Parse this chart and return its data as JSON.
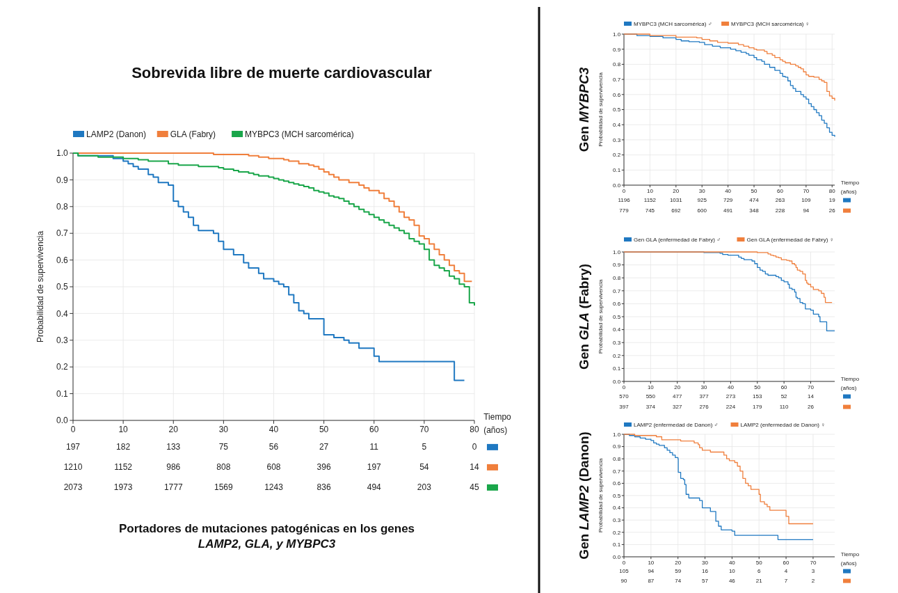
{
  "chart_data": [
    {
      "type": "step",
      "title": "Sobrevida libre de muerte cardiovascular",
      "xlabel": "Tiempo (años)",
      "ylabel": "Probabilidad de supervivencia",
      "legend": "top left",
      "grid": true,
      "xlim": [
        0,
        80
      ],
      "xticks": [
        0,
        10,
        20,
        30,
        40,
        50,
        60,
        70,
        80
      ],
      "ylim": [
        0,
        1
      ],
      "yticks": [
        {
          "value": 0,
          "label": "0.0"
        },
        {
          "value": 0.1,
          "label": "0.1"
        },
        {
          "value": 0.2,
          "label": "0.2"
        },
        {
          "value": 0.3,
          "label": "0.3"
        },
        {
          "value": 0.4,
          "label": "0.4"
        },
        {
          "value": 0.5,
          "label": "0.5"
        },
        {
          "value": 0.6,
          "label": "0.6"
        },
        {
          "value": 0.7,
          "label": "0.7"
        },
        {
          "value": 0.8,
          "label": "0.8"
        },
        {
          "value": 0.9,
          "label": "0.9"
        },
        {
          "value": 1,
          "label": "1.0"
        }
      ],
      "series": [
        {
          "name": "LAMP2 (Danon)",
          "color": "#1f78c1",
          "x": [
            0,
            1,
            8,
            10,
            11,
            12,
            13,
            15,
            16,
            17,
            19,
            20,
            21,
            22,
            23,
            24,
            25,
            28,
            29,
            30,
            32,
            34,
            35,
            37,
            38,
            40,
            41,
            42,
            43,
            44,
            45,
            46,
            47,
            50,
            52,
            54,
            55,
            57,
            60,
            61,
            76,
            78
          ],
          "values": [
            1,
            0.99,
            0.98,
            0.97,
            0.96,
            0.95,
            0.94,
            0.92,
            0.91,
            0.89,
            0.88,
            0.82,
            0.8,
            0.78,
            0.76,
            0.73,
            0.71,
            0.7,
            0.67,
            0.64,
            0.62,
            0.59,
            0.57,
            0.55,
            0.53,
            0.52,
            0.51,
            0.5,
            0.47,
            0.44,
            0.41,
            0.4,
            0.38,
            0.32,
            0.31,
            0.3,
            0.29,
            0.27,
            0.24,
            0.22,
            0.15,
            0.15
          ]
        },
        {
          "name": "GLA (Fabry)",
          "color": "#f07f3c",
          "x": [
            0,
            28,
            35,
            37,
            39,
            42,
            43,
            45,
            47,
            48,
            49,
            50,
            51,
            52,
            53,
            55,
            57,
            58,
            59,
            61,
            62,
            63,
            64,
            65,
            66,
            67,
            68,
            69,
            70,
            71,
            72,
            73,
            74,
            75,
            76,
            77,
            78,
            79.5
          ],
          "values": [
            1,
            0.995,
            0.99,
            0.985,
            0.98,
            0.975,
            0.97,
            0.96,
            0.955,
            0.95,
            0.94,
            0.93,
            0.92,
            0.91,
            0.9,
            0.89,
            0.88,
            0.87,
            0.86,
            0.85,
            0.83,
            0.82,
            0.8,
            0.78,
            0.76,
            0.75,
            0.73,
            0.69,
            0.68,
            0.66,
            0.64,
            0.62,
            0.6,
            0.58,
            0.56,
            0.55,
            0.52,
            0.52
          ]
        },
        {
          "name": "MYBPC3 (MCH sarcomérica)",
          "color": "#1aa64a",
          "x": [
            0,
            1,
            5,
            10,
            13,
            15,
            19,
            21,
            25,
            29,
            30,
            32,
            33,
            35,
            36,
            37,
            39,
            40,
            41,
            42,
            43,
            44,
            45,
            46,
            47,
            48,
            49,
            50,
            51,
            52,
            53,
            54,
            55,
            56,
            57,
            58,
            59,
            60,
            61,
            62,
            63,
            64,
            65,
            66,
            67,
            68,
            69,
            70,
            71,
            72,
            73,
            74,
            75,
            76,
            77,
            78,
            79,
            80
          ],
          "values": [
            1,
            0.99,
            0.985,
            0.98,
            0.975,
            0.97,
            0.96,
            0.955,
            0.95,
            0.945,
            0.94,
            0.935,
            0.93,
            0.925,
            0.92,
            0.915,
            0.91,
            0.905,
            0.9,
            0.895,
            0.89,
            0.885,
            0.88,
            0.875,
            0.87,
            0.86,
            0.855,
            0.85,
            0.84,
            0.835,
            0.83,
            0.82,
            0.81,
            0.8,
            0.79,
            0.78,
            0.77,
            0.76,
            0.75,
            0.74,
            0.73,
            0.72,
            0.71,
            0.7,
            0.68,
            0.67,
            0.66,
            0.64,
            0.6,
            0.58,
            0.57,
            0.56,
            0.54,
            0.53,
            0.51,
            0.5,
            0.44,
            0.43
          ]
        }
      ],
      "annotations": [
        "197",
        "182",
        "133",
        "75",
        "56",
        "27",
        "11",
        "5",
        "0",
        "1210",
        "1152",
        "986",
        "808",
        "608",
        "396",
        "197",
        "54",
        "14",
        "2073",
        "1973",
        "1777",
        "1569",
        "1243",
        "836",
        "494",
        "203",
        "45",
        "Portadores de mutaciones patogénicas en los genes",
        "LAMP2, GLA, y MYBPC3"
      ]
    },
    {
      "type": "step",
      "title": "Gen MYBPC3",
      "xlabel": "Tiempo (años)",
      "ylabel": "Probabilidad de supervivencia",
      "legend": "top left",
      "grid": true,
      "xlim": [
        0,
        81
      ],
      "xticks": [
        0,
        10,
        20,
        30,
        40,
        50,
        60,
        70,
        80
      ],
      "ylim": [
        0,
        1
      ],
      "yticks": [
        {
          "value": 0,
          "label": "0.0"
        },
        {
          "value": 0.1,
          "label": "0.1"
        },
        {
          "value": 0.2,
          "label": "0.2"
        },
        {
          "value": 0.3,
          "label": "0.3"
        },
        {
          "value": 0.4,
          "label": "0.4"
        },
        {
          "value": 0.5,
          "label": "0.5"
        },
        {
          "value": 0.6,
          "label": "0.6"
        },
        {
          "value": 0.7,
          "label": "0.7"
        },
        {
          "value": 0.8,
          "label": "0.8"
        },
        {
          "value": 0.9,
          "label": "0.9"
        },
        {
          "value": 1,
          "label": "1.0"
        }
      ],
      "series": [
        {
          "name": "MYBPC3 (MCH sarcomérica) ♂",
          "color": "#1f78c1",
          "x": [
            0,
            5,
            10,
            15,
            20,
            22,
            25,
            29,
            31,
            34,
            37,
            41,
            43,
            45,
            47,
            48,
            50,
            51,
            53,
            54,
            56,
            58,
            60,
            61,
            62,
            63,
            64,
            65,
            66,
            68,
            69,
            70,
            71,
            72,
            73,
            74,
            75,
            76,
            77,
            78,
            79,
            80,
            81
          ],
          "values": [
            1,
            0.99,
            0.985,
            0.975,
            0.965,
            0.955,
            0.95,
            0.945,
            0.93,
            0.92,
            0.91,
            0.9,
            0.89,
            0.88,
            0.87,
            0.86,
            0.845,
            0.83,
            0.82,
            0.8,
            0.78,
            0.76,
            0.74,
            0.72,
            0.715,
            0.69,
            0.66,
            0.64,
            0.62,
            0.6,
            0.585,
            0.57,
            0.54,
            0.52,
            0.5,
            0.48,
            0.46,
            0.43,
            0.41,
            0.38,
            0.35,
            0.33,
            0.32
          ]
        },
        {
          "name": "MYBPC3 (MCH sarcomérica) ♀",
          "color": "#f07f3c",
          "x": [
            0,
            10,
            20,
            28,
            30,
            33,
            36,
            40,
            44,
            46,
            48,
            50,
            51,
            54,
            55,
            57,
            58,
            60,
            61,
            62,
            64,
            66,
            67,
            68,
            69,
            70,
            71,
            73,
            75,
            76,
            77,
            78,
            79,
            80,
            81
          ],
          "values": [
            1,
            0.99,
            0.98,
            0.975,
            0.965,
            0.955,
            0.945,
            0.94,
            0.93,
            0.92,
            0.91,
            0.9,
            0.895,
            0.885,
            0.87,
            0.86,
            0.845,
            0.83,
            0.82,
            0.81,
            0.8,
            0.79,
            0.78,
            0.77,
            0.75,
            0.73,
            0.72,
            0.715,
            0.7,
            0.69,
            0.68,
            0.62,
            0.59,
            0.575,
            0.56
          ]
        }
      ],
      "annotations": [
        "1196",
        "1152",
        "1031",
        "925",
        "729",
        "474",
        "263",
        "109",
        "19",
        "779",
        "745",
        "692",
        "600",
        "491",
        "348",
        "228",
        "94",
        "26"
      ]
    },
    {
      "type": "step",
      "title": "Gen GLA (Fabry)",
      "xlabel": "Tiempo (años)",
      "ylabel": "Probabilidad de supervivencia",
      "legend": "top left",
      "grid": true,
      "xlim": [
        0,
        79
      ],
      "xticks": [
        0,
        10,
        20,
        30,
        40,
        50,
        60,
        70
      ],
      "ylim": [
        0,
        1
      ],
      "yticks": [
        {
          "value": 0,
          "label": "0.0"
        },
        {
          "value": 0.1,
          "label": "0.1"
        },
        {
          "value": 0.2,
          "label": "0.2"
        },
        {
          "value": 0.3,
          "label": "0.3"
        },
        {
          "value": 0.4,
          "label": "0.4"
        },
        {
          "value": 0.5,
          "label": "0.5"
        },
        {
          "value": 0.6,
          "label": "0.6"
        },
        {
          "value": 0.7,
          "label": "0.7"
        },
        {
          "value": 0.8,
          "label": "0.8"
        },
        {
          "value": 0.9,
          "label": "0.9"
        },
        {
          "value": 1,
          "label": "1.0"
        }
      ],
      "series": [
        {
          "name": "Gen GLA (enfermedad de Fabry) ♂",
          "color": "#1f78c1",
          "x": [
            0,
            30,
            36,
            37,
            39,
            43,
            44,
            45,
            48,
            49,
            50,
            51,
            52,
            53,
            54,
            57,
            58,
            59,
            60,
            61.5,
            62,
            63,
            64,
            64.5,
            65,
            66,
            67,
            68,
            70,
            71,
            73,
            73.5,
            76,
            79
          ],
          "values": [
            1,
            0.995,
            0.99,
            0.98,
            0.975,
            0.96,
            0.95,
            0.94,
            0.93,
            0.91,
            0.88,
            0.86,
            0.85,
            0.83,
            0.82,
            0.81,
            0.8,
            0.78,
            0.77,
            0.75,
            0.72,
            0.71,
            0.69,
            0.65,
            0.64,
            0.61,
            0.6,
            0.56,
            0.55,
            0.52,
            0.5,
            0.46,
            0.39,
            0.39
          ]
        },
        {
          "name": "Gen GLA (enfermedad de Fabry) ♀",
          "color": "#f07f3c",
          "x": [
            0,
            50,
            54,
            55,
            56,
            57,
            58,
            59,
            61,
            62,
            63,
            64,
            64.5,
            65,
            66,
            67,
            68,
            68.5,
            69,
            70,
            71,
            73,
            74,
            75,
            75.5,
            78
          ],
          "values": [
            1,
            0.995,
            0.985,
            0.975,
            0.97,
            0.96,
            0.955,
            0.94,
            0.935,
            0.93,
            0.91,
            0.9,
            0.88,
            0.86,
            0.85,
            0.83,
            0.78,
            0.76,
            0.75,
            0.73,
            0.71,
            0.7,
            0.68,
            0.65,
            0.61,
            0.61
          ]
        }
      ],
      "annotations": [
        "570",
        "550",
        "477",
        "377",
        "273",
        "153",
        "52",
        "14",
        "397",
        "374",
        "327",
        "276",
        "224",
        "179",
        "110",
        "26"
      ]
    },
    {
      "type": "step",
      "title": "Gen LAMP2 (Danon)",
      "xlabel": "Tiempo (años)",
      "ylabel": "Probabilidad de supervivencia",
      "legend": "top left",
      "grid": true,
      "xlim": [
        0,
        78
      ],
      "xticks": [
        0,
        10,
        20,
        30,
        40,
        50,
        60,
        70
      ],
      "ylim": [
        0,
        1
      ],
      "yticks": [
        {
          "value": 0,
          "label": "0.0"
        },
        {
          "value": 0.1,
          "label": "0.1"
        },
        {
          "value": 0.2,
          "label": "0.2"
        },
        {
          "value": 0.3,
          "label": "0.3"
        },
        {
          "value": 0.4,
          "label": "0.4"
        },
        {
          "value": 0.5,
          "label": "0.5"
        },
        {
          "value": 0.6,
          "label": "0.6"
        },
        {
          "value": 0.7,
          "label": "0.7"
        },
        {
          "value": 0.8,
          "label": "0.8"
        },
        {
          "value": 0.9,
          "label": "0.9"
        },
        {
          "value": 1,
          "label": "1.0"
        }
      ],
      "series": [
        {
          "name": "LAMP2 (enfermedad de Danon) ♂",
          "color": "#1f78c1",
          "x": [
            0,
            2,
            4,
            6,
            8,
            10,
            11,
            12,
            13,
            15,
            16,
            17,
            18,
            19,
            20,
            20.1,
            21,
            22,
            22.5,
            23,
            24,
            28,
            29,
            32,
            34,
            35,
            36,
            40,
            41,
            57,
            70
          ],
          "values": [
            1,
            0.99,
            0.98,
            0.97,
            0.96,
            0.95,
            0.93,
            0.92,
            0.91,
            0.89,
            0.87,
            0.85,
            0.83,
            0.81,
            0.8,
            0.69,
            0.64,
            0.63,
            0.59,
            0.51,
            0.48,
            0.46,
            0.4,
            0.37,
            0.29,
            0.25,
            0.22,
            0.21,
            0.175,
            0.14,
            0.14
          ]
        },
        {
          "name": "LAMP2 (enfermedad de Danon) ♀",
          "color": "#f07f3c",
          "x": [
            0,
            4,
            12,
            14,
            21,
            26,
            27.5,
            28,
            29,
            32,
            37,
            38,
            39,
            41,
            42,
            43,
            44,
            45,
            46,
            47,
            50,
            50.5,
            52,
            53,
            54,
            60,
            61,
            70
          ],
          "values": [
            1,
            0.99,
            0.98,
            0.955,
            0.945,
            0.93,
            0.915,
            0.89,
            0.87,
            0.855,
            0.83,
            0.8,
            0.785,
            0.77,
            0.74,
            0.7,
            0.64,
            0.6,
            0.58,
            0.55,
            0.51,
            0.45,
            0.43,
            0.41,
            0.38,
            0.33,
            0.27,
            0.27
          ]
        }
      ],
      "annotations": [
        "105",
        "94",
        "59",
        "16",
        "10",
        "6",
        "4",
        "3",
        "90",
        "87",
        "74",
        "57",
        "46",
        "21",
        "7",
        "2"
      ]
    }
  ]
}
